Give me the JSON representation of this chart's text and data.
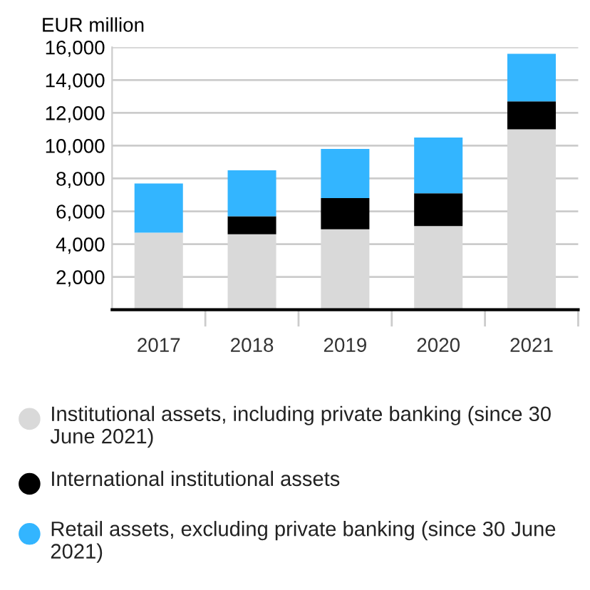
{
  "chart_data": {
    "type": "bar",
    "stacked": true,
    "ylabel": "EUR million",
    "categories": [
      "2017",
      "2018",
      "2019",
      "2020",
      "2021"
    ],
    "series": [
      {
        "name": "Institutional assets, including private banking (since 30 June 2021)",
        "color": "#d9d9d9",
        "values": [
          4700,
          4600,
          4900,
          5100,
          11000
        ]
      },
      {
        "name": "International institutional assets",
        "color": "#000000",
        "values": [
          0,
          1100,
          1900,
          2000,
          1700
        ]
      },
      {
        "name": "Retail assets, excluding private banking (since 30 June 2021)",
        "color": "#33b5ff",
        "values": [
          3000,
          2800,
          3000,
          3400,
          2900
        ]
      }
    ],
    "ylim": [
      0,
      16000
    ],
    "yticks": [
      {
        "value": 2000,
        "label": "2,000"
      },
      {
        "value": 4000,
        "label": "4,000"
      },
      {
        "value": 6000,
        "label": "6,000"
      },
      {
        "value": 8000,
        "label": "8,000"
      },
      {
        "value": 10000,
        "label": "10,000"
      },
      {
        "value": 12000,
        "label": "12,000"
      },
      {
        "value": 14000,
        "label": "14,000"
      },
      {
        "value": 16000,
        "label": "16,000"
      }
    ],
    "grid": "y",
    "legend": "bottom"
  }
}
